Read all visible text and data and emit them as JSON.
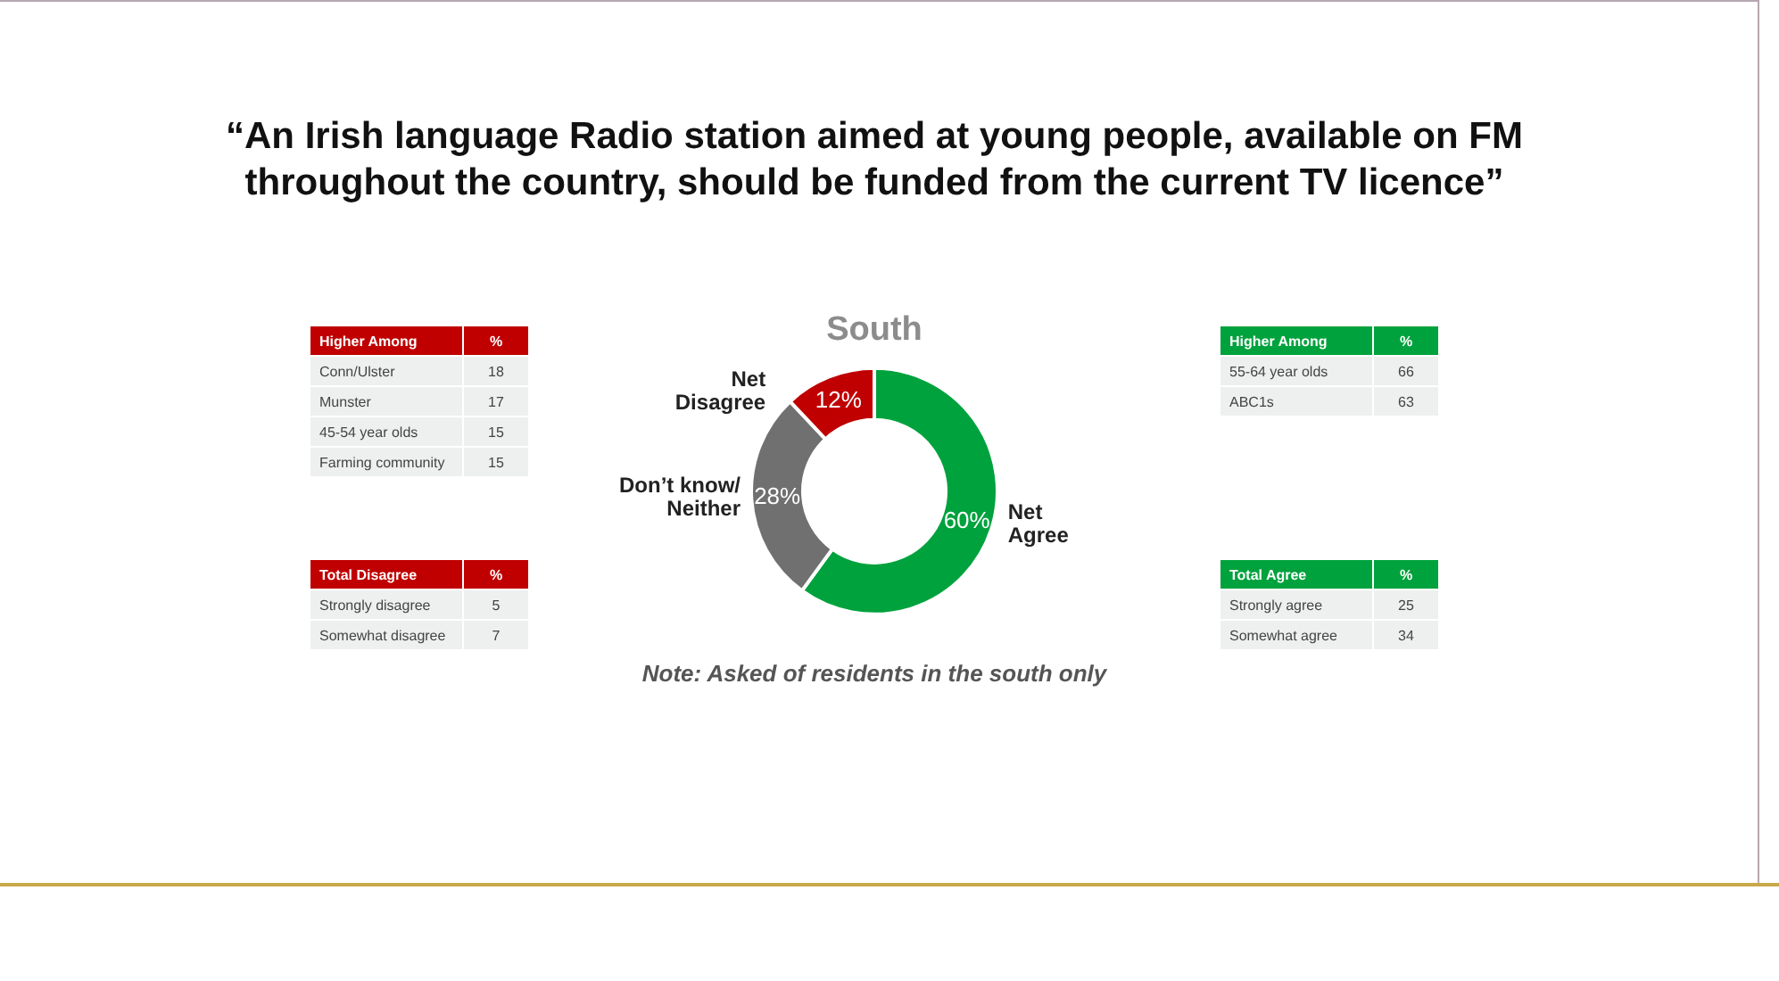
{
  "chart_data": [
    {
      "type": "donut",
      "title": "“An Irish language Radio station aimed at young people, available on FM throughout the country, should be funded from the current TV licence”",
      "subtitle": "South",
      "categories": [
        "Net Agree",
        "Don’t know/ Neither",
        "Net Disagree"
      ],
      "values": [
        60,
        28,
        12
      ],
      "value_labels": [
        "60%",
        "28%",
        "12%"
      ],
      "colors": [
        "#00a23d",
        "#707070",
        "#c00000"
      ],
      "annotations": [
        "Note: Asked of residents in the south only"
      ]
    },
    {
      "type": "other",
      "title": "Higher Among",
      "color": "#c00000",
      "annotations": [
        "%",
        "Conn/Ulster",
        "18",
        "Munster",
        "17",
        "45-54 year olds",
        "15",
        "Farming community",
        "15"
      ]
    },
    {
      "type": "other",
      "title": "Total Disagree",
      "color": "#c00000",
      "annotations": [
        "%",
        "Strongly disagree",
        "5",
        "Somewhat disagree",
        "7"
      ]
    },
    {
      "type": "other",
      "title": "Higher Among",
      "color": "#00a23d",
      "annotations": [
        "%",
        "55-64 year olds",
        "66",
        "ABC1s",
        "63"
      ]
    },
    {
      "type": "other",
      "title": "Total Agree",
      "color": "#00a23d",
      "annotations": [
        "%",
        "Strongly agree",
        "25",
        "Somewhat agree",
        "34"
      ]
    }
  ]
}
